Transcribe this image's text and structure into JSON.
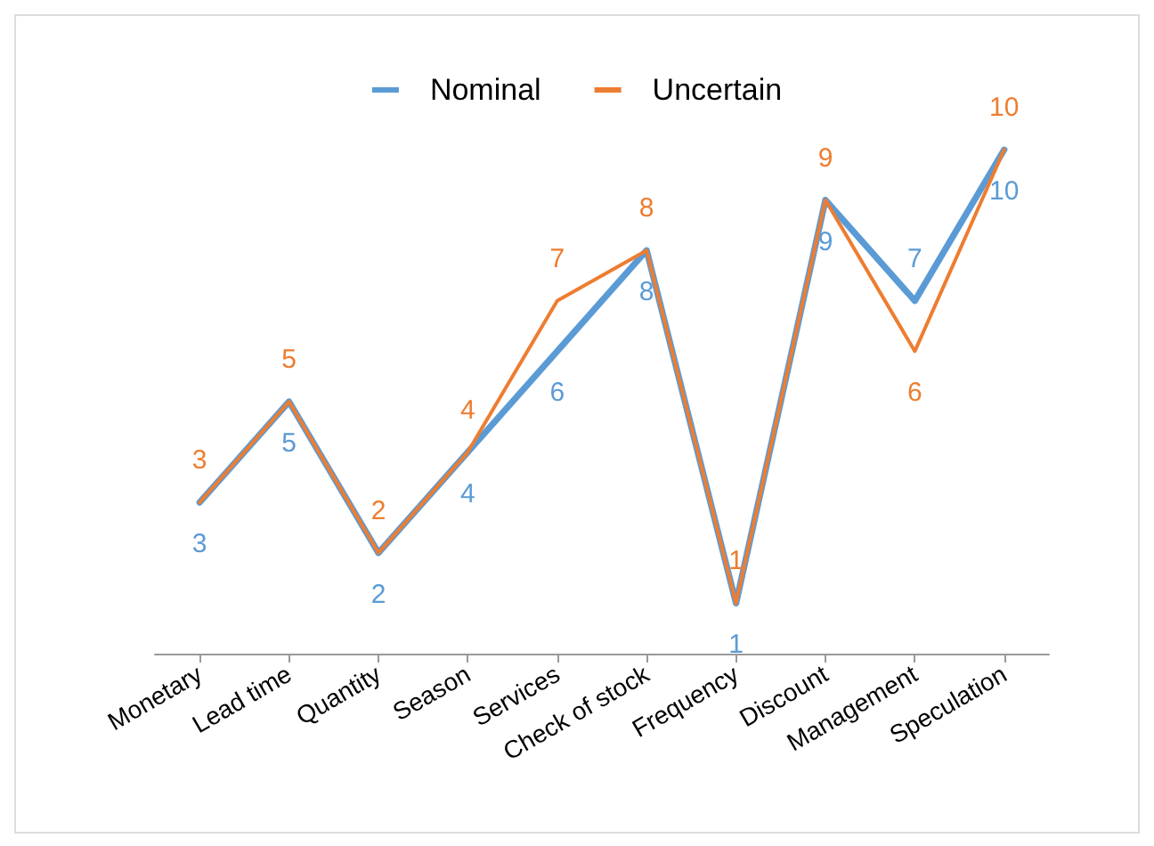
{
  "chart_data": {
    "type": "line",
    "categories": [
      "Monetary",
      "Lead time",
      "Quantity",
      "Season",
      "Services",
      "Check of stock",
      "Frequency",
      "Discount",
      "Management",
      "Speculation"
    ],
    "series": [
      {
        "name": "Nominal",
        "color": "#5b9bd5",
        "values": [
          3,
          5,
          2,
          4,
          6,
          8,
          1,
          9,
          7,
          10
        ]
      },
      {
        "name": "Uncertain",
        "color": "#ed7d31",
        "values": [
          3,
          5,
          2,
          4,
          7,
          8,
          1,
          9,
          6,
          10
        ]
      }
    ],
    "data_labels": true,
    "legend": "top",
    "grid": false,
    "marker": "none",
    "line_style": "solid"
  }
}
